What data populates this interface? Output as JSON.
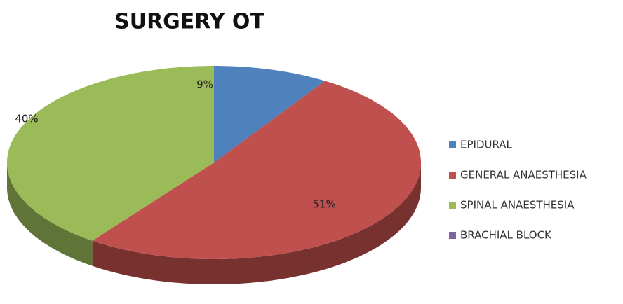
{
  "chart_data": {
    "type": "pie",
    "title": "SURGERY OT",
    "categories": [
      "EPIDURAL",
      "GENERAL ANAESTHESIA",
      "SPINAL ANAESTHESIA",
      "BRACHIAL BLOCK"
    ],
    "values": [
      9,
      51,
      40,
      0
    ],
    "value_labels": [
      "9%",
      "51%",
      "40%",
      null
    ],
    "colors": [
      "#4f81bd",
      "#c0504d",
      "#9bbb59",
      "#8064a2"
    ],
    "legend": "right"
  }
}
